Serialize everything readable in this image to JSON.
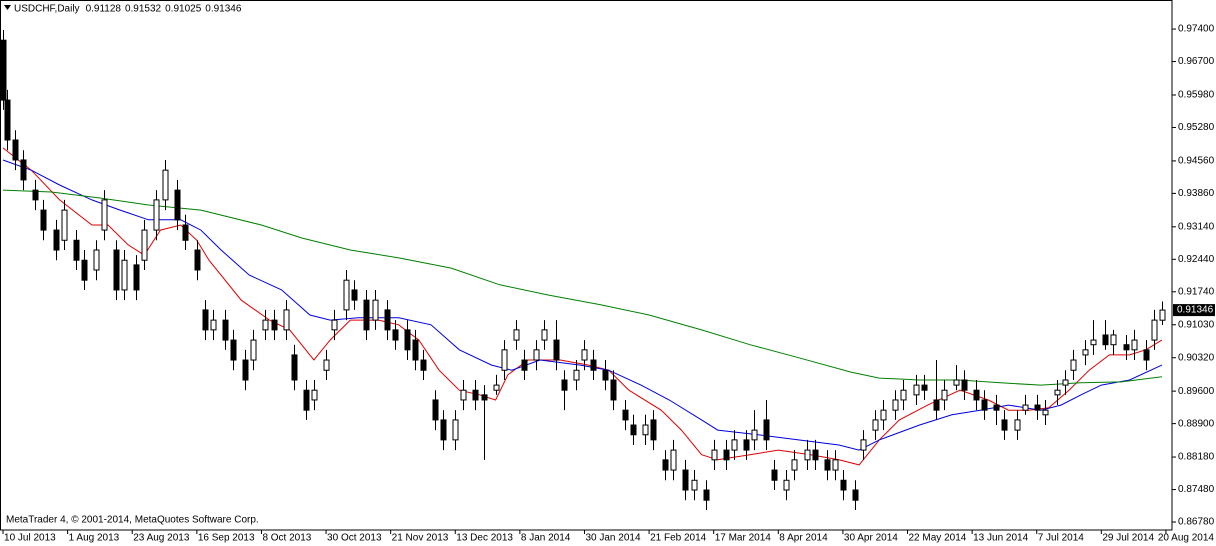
{
  "chart_data": {
    "type": "candlestick",
    "title": "USDCHF,Daily",
    "footer": "MetaTrader 4, © 2001-2014, MetaQuotes Software Corp.",
    "up_color": "#ffffff",
    "down_color": "#000000",
    "wick_color": "#000000",
    "ylim": [
      0.8663,
      0.9794
    ],
    "yticks": [
      {
        "value": 0.974,
        "label": "0.97400"
      },
      {
        "value": 0.967,
        "label": "0.96700"
      },
      {
        "value": 0.9598,
        "label": "0.95980"
      },
      {
        "value": 0.9528,
        "label": "0.95280"
      },
      {
        "value": 0.9456,
        "label": "0.94560"
      },
      {
        "value": 0.9386,
        "label": "0.93860"
      },
      {
        "value": 0.9314,
        "label": "0.93140"
      },
      {
        "value": 0.9244,
        "label": "0.92440"
      },
      {
        "value": 0.9174,
        "label": "0.91740"
      },
      {
        "value": 0.9103,
        "label": "0.91030"
      },
      {
        "value": 0.9032,
        "label": "0.90320"
      },
      {
        "value": 0.896,
        "label": "0.89600"
      },
      {
        "value": 0.889,
        "label": "0.88900"
      },
      {
        "value": 0.8818,
        "label": "0.88180"
      },
      {
        "value": 0.8748,
        "label": "0.87480"
      },
      {
        "value": 0.8678,
        "label": "0.86780"
      }
    ],
    "xlim": [
      -0.5,
      289.5
    ],
    "xticks": [
      {
        "value": 0,
        "label": "10 Jul 2013"
      },
      {
        "value": 16,
        "label": "1 Aug 2013"
      },
      {
        "value": 32,
        "label": "23 Aug 2013"
      },
      {
        "value": 48,
        "label": "16 Sep 2013"
      },
      {
        "value": 64,
        "label": "8 Oct 2013"
      },
      {
        "value": 80,
        "label": "30 Oct 2013"
      },
      {
        "value": 96,
        "label": "21 Nov 2013"
      },
      {
        "value": 112,
        "label": "13 Dec 2013"
      },
      {
        "value": 128,
        "label": "8 Jan 2014"
      },
      {
        "value": 144,
        "label": "30 Jan 2014"
      },
      {
        "value": 160,
        "label": "21 Feb 2014"
      },
      {
        "value": 176,
        "label": "17 Mar 2014"
      },
      {
        "value": 192,
        "label": "8 Apr 2014"
      },
      {
        "value": 208,
        "label": "30 Apr 2014"
      },
      {
        "value": 224,
        "label": "22 May 2014"
      },
      {
        "value": 240,
        "label": "13 Jun 2014"
      },
      {
        "value": 256,
        "label": "7 Jul 2014"
      },
      {
        "value": 272,
        "label": "29 Jul 2014"
      },
      {
        "value": 288,
        "label": "20 Aug 2014"
      }
    ],
    "x": [
      0,
      1,
      3,
      5,
      8,
      10,
      13,
      15,
      18,
      20,
      23,
      25,
      28,
      30,
      33,
      35,
      38,
      40,
      43,
      45,
      48,
      50,
      52,
      55,
      57,
      60,
      62,
      65,
      67,
      70,
      72,
      75,
      77,
      80,
      82,
      85,
      87,
      90,
      92,
      95,
      97,
      100,
      102,
      104,
      107,
      109,
      112,
      114,
      117,
      119,
      122,
      124,
      127,
      129,
      132,
      134,
      137,
      139,
      142,
      144,
      146,
      149,
      151,
      154,
      156,
      159,
      161,
      164,
      166,
      169,
      171,
      174,
      176,
      179,
      181,
      184,
      186,
      189,
      191,
      194,
      196,
      199,
      201,
      204,
      206,
      208,
      211,
      213,
      216,
      218,
      221,
      223,
      226,
      228,
      231,
      233,
      236,
      238,
      241,
      243,
      246,
      248,
      251,
      253,
      256,
      258,
      261,
      263,
      265,
      268,
      270,
      273,
      275,
      278,
      280,
      283,
      285,
      287
    ],
    "ohlc": [
      [
        0.9716,
        0.9738,
        0.9566,
        0.9587
      ],
      [
        0.9587,
        0.9609,
        0.9479,
        0.9501
      ],
      [
        0.9501,
        0.9522,
        0.9436,
        0.9458
      ],
      [
        0.9458,
        0.9479,
        0.9393,
        0.9415
      ],
      [
        0.9393,
        0.9415,
        0.935,
        0.9372
      ],
      [
        0.935,
        0.9372,
        0.9285,
        0.9307
      ],
      [
        0.9307,
        0.9329,
        0.9242,
        0.9264
      ],
      [
        0.9285,
        0.9372,
        0.9264,
        0.935
      ],
      [
        0.9285,
        0.9307,
        0.9221,
        0.9242
      ],
      [
        0.9242,
        0.9264,
        0.9178,
        0.9199
      ],
      [
        0.9221,
        0.9285,
        0.9199,
        0.9264
      ],
      [
        0.9307,
        0.9393,
        0.9285,
        0.9372
      ],
      [
        0.9264,
        0.9285,
        0.9156,
        0.9178
      ],
      [
        0.9178,
        0.9264,
        0.9156,
        0.9242
      ],
      [
        0.9232,
        0.9253,
        0.9156,
        0.9178
      ],
      [
        0.9242,
        0.9329,
        0.9221,
        0.9307
      ],
      [
        0.9307,
        0.9393,
        0.9285,
        0.9372
      ],
      [
        0.9372,
        0.9458,
        0.935,
        0.9436
      ],
      [
        0.9393,
        0.9415,
        0.9307,
        0.9329
      ],
      [
        0.9318,
        0.934,
        0.9264,
        0.9285
      ],
      [
        0.9264,
        0.9285,
        0.9199,
        0.9221
      ],
      [
        0.9135,
        0.9156,
        0.907,
        0.9092
      ],
      [
        0.9092,
        0.9135,
        0.907,
        0.9113
      ],
      [
        0.9113,
        0.9135,
        0.9049,
        0.907
      ],
      [
        0.907,
        0.9092,
        0.9005,
        0.9027
      ],
      [
        0.9027,
        0.9049,
        0.8962,
        0.8984
      ],
      [
        0.9027,
        0.9092,
        0.9005,
        0.907
      ],
      [
        0.9092,
        0.9135,
        0.907,
        0.9113
      ],
      [
        0.9113,
        0.9135,
        0.907,
        0.9092
      ],
      [
        0.9092,
        0.9156,
        0.907,
        0.9135
      ],
      [
        0.9038,
        0.906,
        0.8962,
        0.8984
      ],
      [
        0.8962,
        0.8984,
        0.8898,
        0.8919
      ],
      [
        0.8941,
        0.8984,
        0.8919,
        0.8962
      ],
      [
        0.9005,
        0.9049,
        0.8984,
        0.9027
      ],
      [
        0.9092,
        0.9135,
        0.907,
        0.9113
      ],
      [
        0.9135,
        0.9221,
        0.9113,
        0.9199
      ],
      [
        0.9178,
        0.9199,
        0.9135,
        0.9156
      ],
      [
        0.9156,
        0.9178,
        0.907,
        0.9092
      ],
      [
        0.9113,
        0.9178,
        0.9092,
        0.9156
      ],
      [
        0.9135,
        0.9156,
        0.907,
        0.9092
      ],
      [
        0.9092,
        0.9113,
        0.9049,
        0.907
      ],
      [
        0.9092,
        0.9113,
        0.9027,
        0.9049
      ],
      [
        0.907,
        0.9092,
        0.9005,
        0.9027
      ],
      [
        0.9027,
        0.9049,
        0.8984,
        0.9005
      ],
      [
        0.8941,
        0.8962,
        0.8876,
        0.8898
      ],
      [
        0.8898,
        0.8919,
        0.8833,
        0.8855
      ],
      [
        0.8855,
        0.8919,
        0.8833,
        0.8898
      ],
      [
        0.8941,
        0.8984,
        0.8919,
        0.8962
      ],
      [
        0.8962,
        0.8984,
        0.8919,
        0.8941
      ],
      [
        0.8952,
        0.8973,
        0.8812,
        0.8941
      ],
      [
        0.8962,
        0.8995,
        0.8952,
        0.8973
      ],
      [
        0.9005,
        0.907,
        0.8984,
        0.9049
      ],
      [
        0.907,
        0.9113,
        0.9049,
        0.9092
      ],
      [
        0.9027,
        0.9049,
        0.8984,
        0.9005
      ],
      [
        0.9027,
        0.907,
        0.9005,
        0.9049
      ],
      [
        0.907,
        0.9113,
        0.9049,
        0.9092
      ],
      [
        0.907,
        0.9113,
        0.9005,
        0.9027
      ],
      [
        0.8984,
        0.9005,
        0.8919,
        0.8962
      ],
      [
        0.8984,
        0.9027,
        0.8962,
        0.9005
      ],
      [
        0.9027,
        0.907,
        0.9005,
        0.9049
      ],
      [
        0.9027,
        0.9049,
        0.8984,
        0.9005
      ],
      [
        0.9005,
        0.9027,
        0.8962,
        0.8984
      ],
      [
        0.8984,
        0.9005,
        0.8919,
        0.8941
      ],
      [
        0.8919,
        0.8941,
        0.8876,
        0.8898
      ],
      [
        0.8887,
        0.8909,
        0.8844,
        0.8866
      ],
      [
        0.8866,
        0.8909,
        0.8844,
        0.8887
      ],
      [
        0.8898,
        0.8919,
        0.8833,
        0.8855
      ],
      [
        0.8812,
        0.8833,
        0.8768,
        0.879
      ],
      [
        0.879,
        0.8855,
        0.8768,
        0.8833
      ],
      [
        0.879,
        0.8812,
        0.8725,
        0.8747
      ],
      [
        0.8747,
        0.879,
        0.8725,
        0.8768
      ],
      [
        0.8747,
        0.8768,
        0.8704,
        0.8725
      ],
      [
        0.8812,
        0.8855,
        0.879,
        0.8833
      ],
      [
        0.8833,
        0.8855,
        0.879,
        0.8812
      ],
      [
        0.8833,
        0.8876,
        0.8812,
        0.8855
      ],
      [
        0.8855,
        0.8876,
        0.8812,
        0.8833
      ],
      [
        0.8855,
        0.8919,
        0.8833,
        0.8876
      ],
      [
        0.8898,
        0.8941,
        0.8833,
        0.8855
      ],
      [
        0.879,
        0.8812,
        0.8747,
        0.8768
      ],
      [
        0.8747,
        0.879,
        0.8725,
        0.8768
      ],
      [
        0.879,
        0.8833,
        0.8768,
        0.8812
      ],
      [
        0.8812,
        0.8855,
        0.879,
        0.8833
      ],
      [
        0.8833,
        0.8855,
        0.879,
        0.8812
      ],
      [
        0.8812,
        0.8833,
        0.8768,
        0.879
      ],
      [
        0.879,
        0.8833,
        0.8768,
        0.8812
      ],
      [
        0.8768,
        0.879,
        0.8725,
        0.8747
      ],
      [
        0.8747,
        0.8768,
        0.8704,
        0.8725
      ],
      [
        0.8833,
        0.8876,
        0.8812,
        0.8855
      ],
      [
        0.8876,
        0.8919,
        0.8855,
        0.8898
      ],
      [
        0.8898,
        0.8941,
        0.8876,
        0.8919
      ],
      [
        0.8919,
        0.8962,
        0.8898,
        0.8941
      ],
      [
        0.8941,
        0.8984,
        0.8919,
        0.8962
      ],
      [
        0.8952,
        0.8995,
        0.893,
        0.8973
      ],
      [
        0.8973,
        0.8995,
        0.8941,
        0.8962
      ],
      [
        0.8941,
        0.9027,
        0.8898,
        0.8919
      ],
      [
        0.8941,
        0.8984,
        0.8919,
        0.8962
      ],
      [
        0.8973,
        0.9016,
        0.8962,
        0.8984
      ],
      [
        0.8984,
        0.9005,
        0.8941,
        0.8962
      ],
      [
        0.8962,
        0.8984,
        0.8919,
        0.8941
      ],
      [
        0.8941,
        0.8962,
        0.8898,
        0.8919
      ],
      [
        0.893,
        0.8952,
        0.8887,
        0.8919
      ],
      [
        0.8898,
        0.8919,
        0.8855,
        0.8876
      ],
      [
        0.8876,
        0.8919,
        0.8855,
        0.8898
      ],
      [
        0.8919,
        0.8952,
        0.8909,
        0.893
      ],
      [
        0.893,
        0.8952,
        0.8898,
        0.8919
      ],
      [
        0.8909,
        0.8941,
        0.8887,
        0.8919
      ],
      [
        0.8952,
        0.8984,
        0.893,
        0.8962
      ],
      [
        0.8973,
        0.9005,
        0.8952,
        0.8984
      ],
      [
        0.9005,
        0.9049,
        0.8984,
        0.9027
      ],
      [
        0.9038,
        0.907,
        0.9016,
        0.9049
      ],
      [
        0.906,
        0.9113,
        0.9038,
        0.907
      ],
      [
        0.9081,
        0.9113,
        0.9049,
        0.906
      ],
      [
        0.906,
        0.9092,
        0.9038,
        0.9081
      ],
      [
        0.906,
        0.9081,
        0.9027,
        0.9049
      ],
      [
        0.9049,
        0.9092,
        0.9027,
        0.907
      ],
      [
        0.9049,
        0.907,
        0.9005,
        0.9027
      ],
      [
        0.907,
        0.9135,
        0.9049,
        0.9113
      ],
      [
        0.91128,
        0.91532,
        0.91025,
        0.91346
      ]
    ],
    "series": [
      {
        "color": "#e00000",
        "x": [
          0,
          7,
          14,
          22,
          26,
          31,
          35,
          39,
          44,
          48,
          51,
          59,
          66,
          71,
          77,
          81,
          86,
          93,
          98,
          103,
          108,
          113,
          118,
          122,
          125,
          130,
          138,
          145,
          150,
          155,
          163,
          168,
          173,
          177,
          185,
          192,
          200,
          207,
          212,
          217,
          222,
          229,
          237,
          244,
          249,
          254,
          259,
          264,
          269,
          274,
          279,
          283,
          287
        ],
        "values": [
          0.9484,
          0.9436,
          0.9372,
          0.9318,
          0.9318,
          0.9275,
          0.9253,
          0.9307,
          0.9318,
          0.9285,
          0.9242,
          0.9156,
          0.9113,
          0.9092,
          0.9027,
          0.907,
          0.9113,
          0.9113,
          0.9103,
          0.907,
          0.9005,
          0.8962,
          0.8952,
          0.8941,
          0.8995,
          0.9027,
          0.9027,
          0.9016,
          0.9005,
          0.8962,
          0.8919,
          0.8876,
          0.8823,
          0.8812,
          0.8823,
          0.8833,
          0.8823,
          0.8812,
          0.8801,
          0.8855,
          0.8898,
          0.893,
          0.8962,
          0.8941,
          0.8919,
          0.8919,
          0.8924,
          0.8962,
          0.9005,
          0.9038,
          0.9038,
          0.9049,
          0.907
        ]
      },
      {
        "color": "#0000e0",
        "x": [
          0,
          7,
          14,
          22,
          29,
          36,
          44,
          49,
          54,
          61,
          69,
          76,
          81,
          88,
          98,
          106,
          113,
          121,
          126,
          133,
          143,
          150,
          158,
          165,
          173,
          177,
          187,
          197,
          207,
          212,
          217,
          227,
          235,
          242,
          249,
          257,
          262,
          267,
          272,
          279,
          287
        ],
        "values": [
          0.9458,
          0.9436,
          0.9404,
          0.9372,
          0.935,
          0.9329,
          0.9329,
          0.9307,
          0.9264,
          0.921,
          0.9178,
          0.9124,
          0.9113,
          0.9118,
          0.9118,
          0.9103,
          0.9049,
          0.9016,
          0.9005,
          0.9027,
          0.9016,
          0.9005,
          0.8973,
          0.8941,
          0.8898,
          0.8876,
          0.8866,
          0.8855,
          0.8844,
          0.8833,
          0.8855,
          0.8887,
          0.8909,
          0.8919,
          0.893,
          0.8919,
          0.893,
          0.8952,
          0.8973,
          0.8984,
          0.9016
        ]
      },
      {
        "color": "#008000",
        "x": [
          0,
          12,
          24,
          36,
          49,
          64,
          74,
          86,
          98,
          111,
          123,
          135,
          148,
          160,
          173,
          185,
          197,
          210,
          217,
          227,
          237,
          247,
          257,
          267,
          277,
          287
        ],
        "values": [
          0.9393,
          0.9389,
          0.9376,
          0.9361,
          0.935,
          0.9318,
          0.929,
          0.9264,
          0.9247,
          0.9225,
          0.9189,
          0.9167,
          0.9146,
          0.9124,
          0.9092,
          0.906,
          0.9032,
          0.9001,
          0.8988,
          0.8984,
          0.8984,
          0.8978,
          0.8973,
          0.8978,
          0.898,
          0.8991
        ]
      }
    ]
  }
}
